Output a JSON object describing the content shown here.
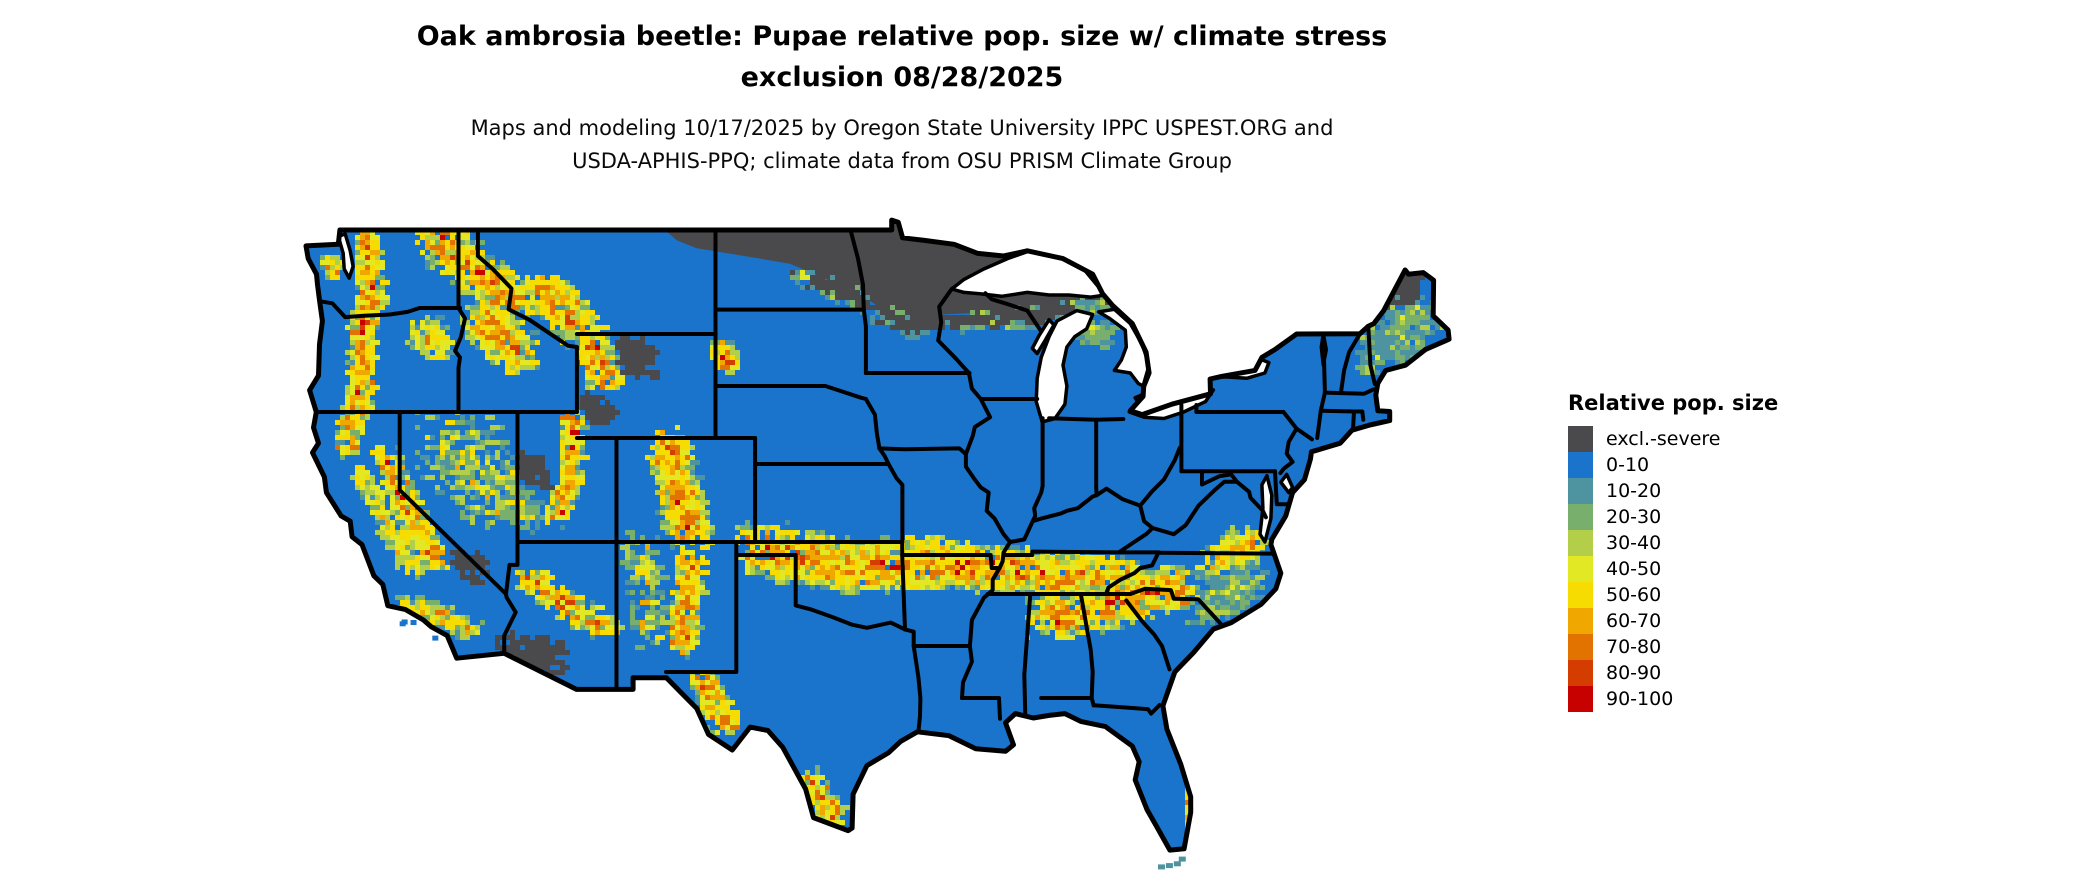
{
  "title": {
    "line1": "Oak ambrosia beetle: Pupae relative pop. size w/ climate stress",
    "line2": "exclusion 08/28/2025"
  },
  "subtitle": {
    "line1": "Maps and modeling 10/17/2025 by Oregon State University IPPC USPEST.ORG and",
    "line2": "USDA-APHIS-PPQ; climate data from OSU PRISM Climate Group"
  },
  "legend": {
    "title": "Relative pop. size",
    "items": [
      {
        "id": "excl",
        "label": "excl.-severe",
        "color": "#4A4A4C"
      },
      {
        "id": "p0",
        "label": "0-10",
        "color": "#1B74CB"
      },
      {
        "id": "p10",
        "label": "10-20",
        "color": "#4D93A0"
      },
      {
        "id": "p20",
        "label": "20-30",
        "color": "#79AF6C"
      },
      {
        "id": "p30",
        "label": "30-40",
        "color": "#B3CE49"
      },
      {
        "id": "p40",
        "label": "40-50",
        "color": "#E3E824"
      },
      {
        "id": "p50",
        "label": "50-60",
        "color": "#F6DC00"
      },
      {
        "id": "p60",
        "label": "60-70",
        "color": "#F0A800"
      },
      {
        "id": "p70",
        "label": "70-80",
        "color": "#E27300"
      },
      {
        "id": "p80",
        "label": "80-90",
        "color": "#D53D00"
      },
      {
        "id": "p90",
        "label": "90-100",
        "color": "#C70000"
      }
    ]
  },
  "map": {
    "region": "Contiguous United States",
    "border_color": "#000000",
    "water_color": "#FFFFFF",
    "land_base": "p0",
    "excluded_region": "excl"
  }
}
